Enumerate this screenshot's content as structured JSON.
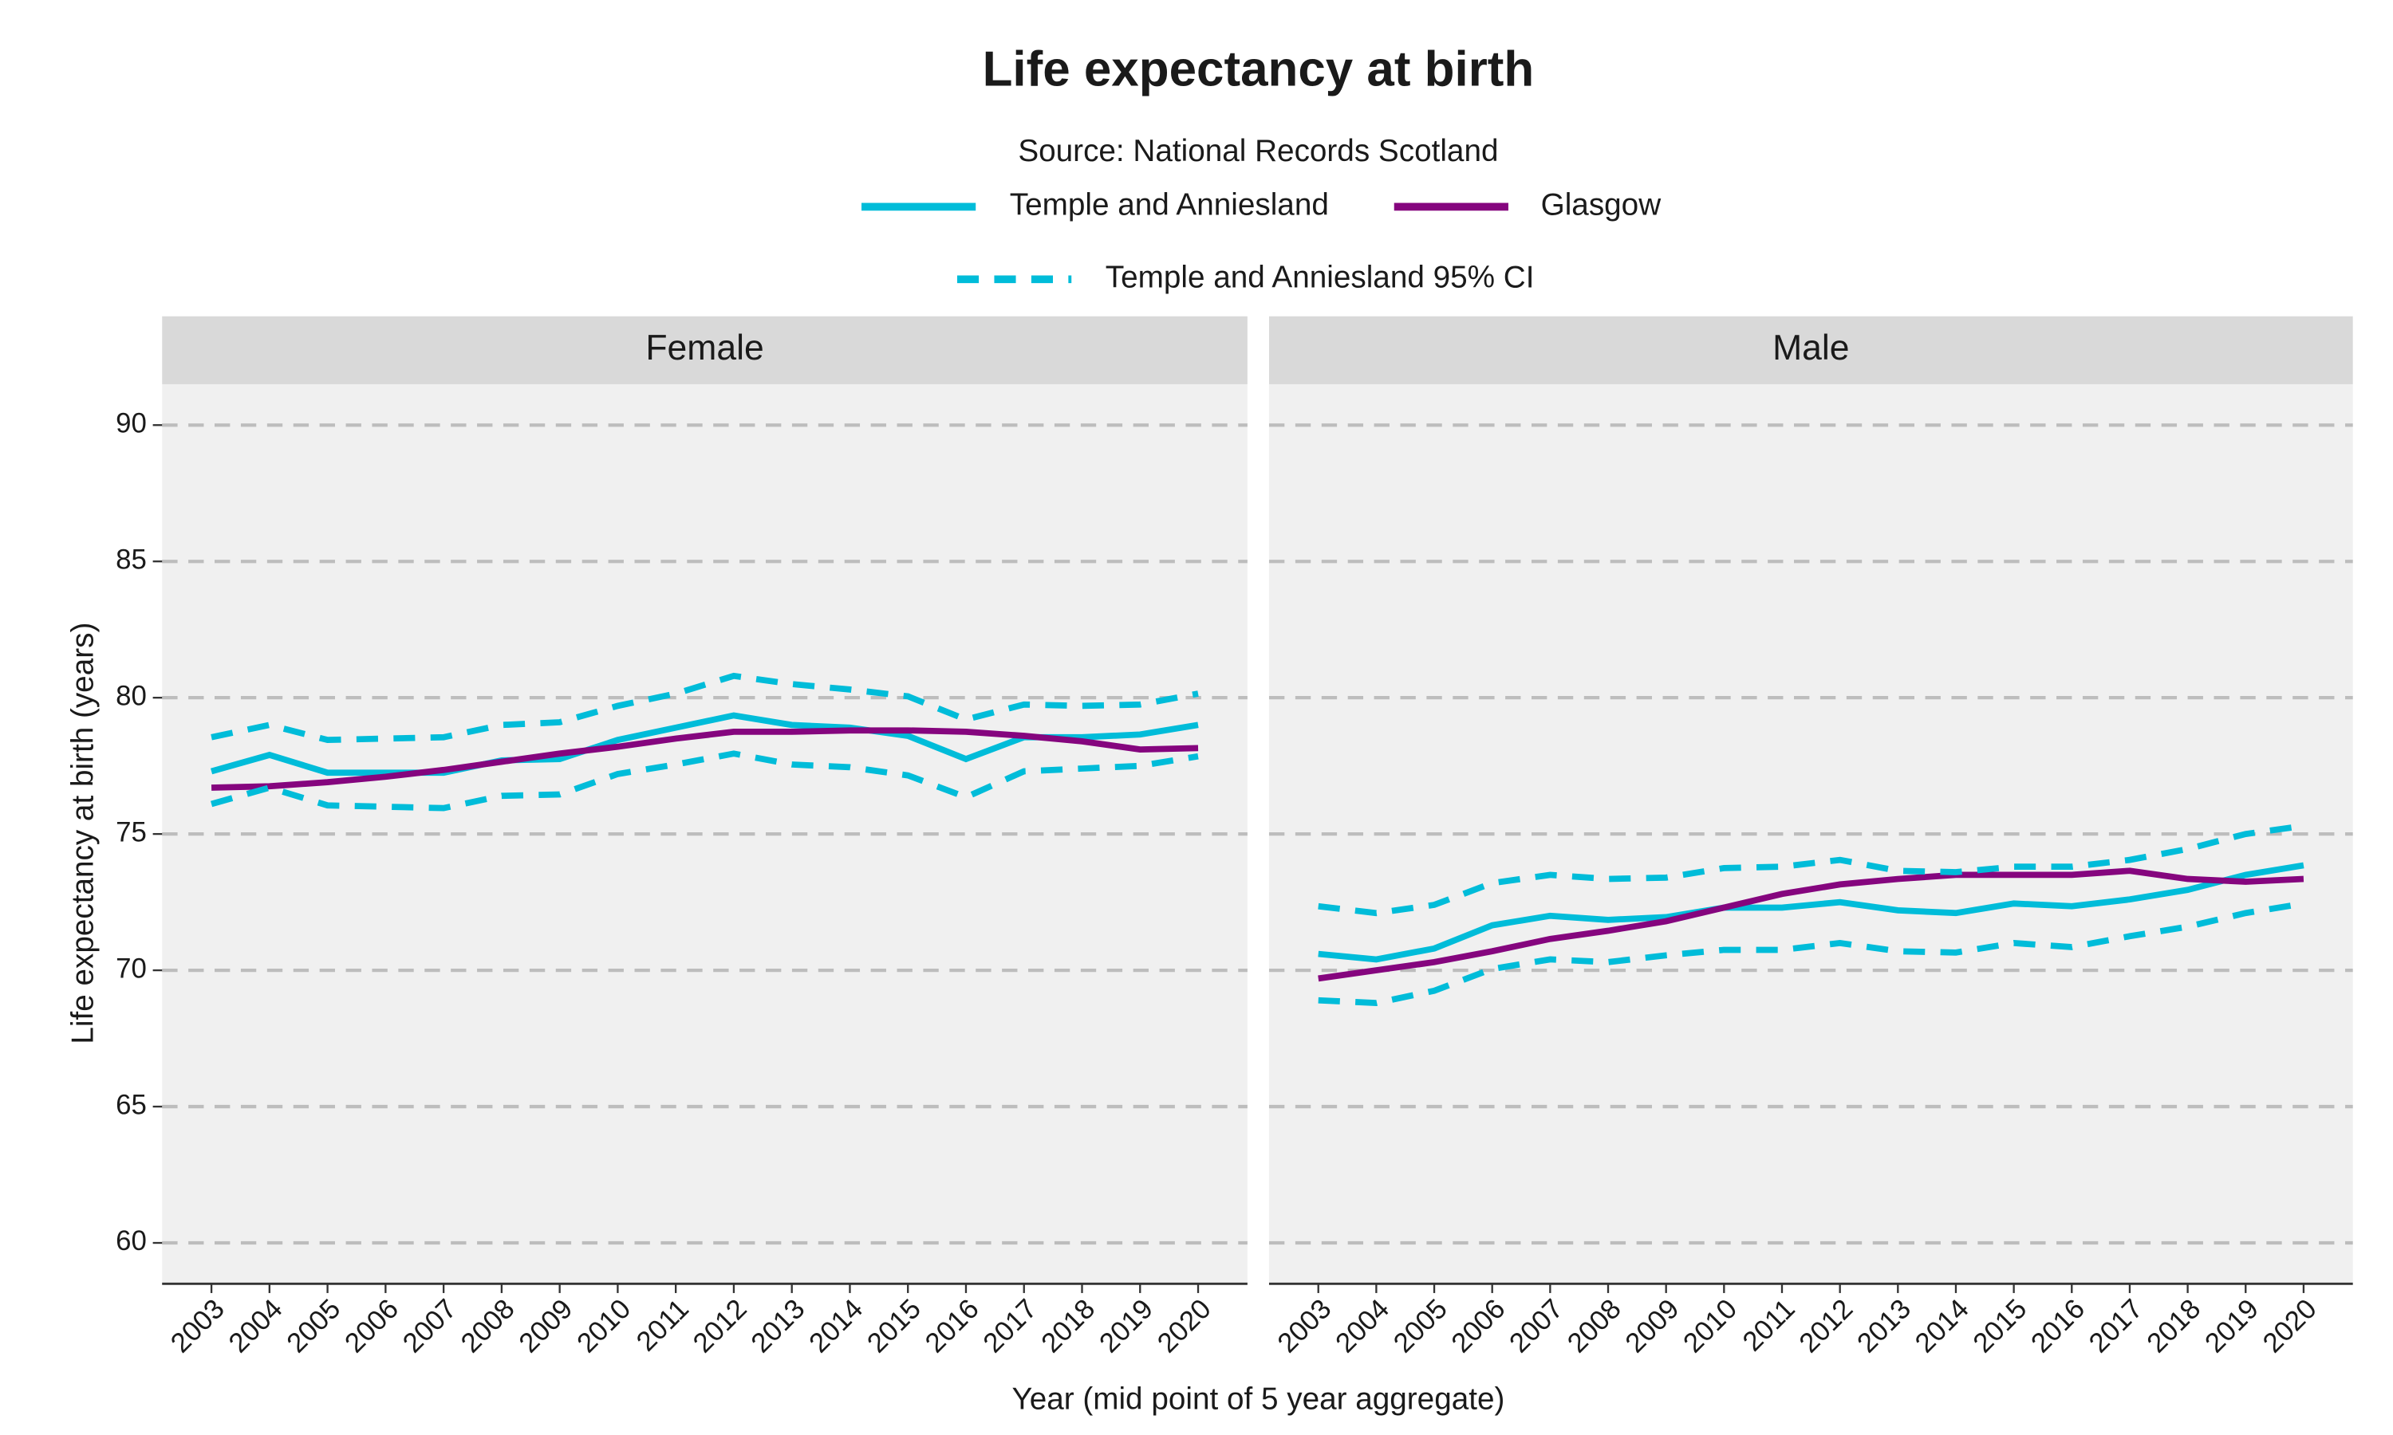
{
  "chart_data": {
    "type": "line",
    "title": "Life expectancy at birth",
    "subtitle": "Source: National Records Scotland",
    "x_label": "Year (mid point of 5 year aggregate)",
    "y_label": "Life expectancy at birth (years)",
    "x": [
      2003,
      2004,
      2005,
      2006,
      2007,
      2008,
      2009,
      2010,
      2011,
      2012,
      2013,
      2014,
      2015,
      2016,
      2017,
      2018,
      2019,
      2020
    ],
    "xlim": [
      2002.15,
      2020.85
    ],
    "ylim": [
      58.5,
      91.5
    ],
    "yticks": [
      60,
      65,
      70,
      75,
      80,
      85,
      90
    ],
    "grid": true,
    "series": [
      {
        "name": "Temple and Anniesland",
        "color": "#00bcd9",
        "dashed": false
      },
      {
        "name": "Glasgow",
        "color": "#85057e",
        "dashed": false
      },
      {
        "name": "Temple and Anniesland 95% CI",
        "color": "#00bcd9",
        "dashed": true
      }
    ],
    "panels": [
      {
        "title": "Female",
        "data": [
          {
            "values": [
              77.3,
              77.9,
              77.25,
              77.25,
              77.25,
              77.7,
              77.75,
              78.45,
              78.9,
              79.35,
              79.0,
              78.9,
              78.6,
              77.75,
              78.55,
              78.55,
              78.65,
              79.0
            ]
          },
          {
            "values": [
              76.7,
              76.75,
              76.9,
              77.1,
              77.35,
              77.65,
              77.95,
              78.2,
              78.5,
              78.75,
              78.75,
              78.8,
              78.8,
              78.75,
              78.6,
              78.4,
              78.1,
              78.15
            ]
          },
          {
            "lower": [
              76.1,
              76.7,
              76.05,
              76.0,
              75.95,
              76.4,
              76.45,
              77.2,
              77.55,
              77.95,
              77.55,
              77.45,
              77.15,
              76.35,
              77.3,
              77.4,
              77.5,
              77.85
            ],
            "upper": [
              78.55,
              79.0,
              78.45,
              78.5,
              78.55,
              79.0,
              79.1,
              79.7,
              80.15,
              80.8,
              80.5,
              80.3,
              80.05,
              79.2,
              79.75,
              79.7,
              79.75,
              80.15
            ]
          }
        ]
      },
      {
        "title": "Male",
        "data": [
          {
            "values": [
              70.6,
              70.4,
              70.8,
              71.65,
              72.0,
              71.85,
              71.95,
              72.3,
              72.3,
              72.5,
              72.2,
              72.1,
              72.45,
              72.35,
              72.6,
              72.95,
              73.5,
              73.85
            ]
          },
          {
            "values": [
              69.7,
              70.0,
              70.3,
              70.7,
              71.15,
              71.45,
              71.8,
              72.3,
              72.8,
              73.15,
              73.35,
              73.5,
              73.5,
              73.5,
              73.65,
              73.35,
              73.25,
              73.35
            ]
          },
          {
            "lower": [
              68.9,
              68.8,
              69.25,
              70.05,
              70.4,
              70.3,
              70.55,
              70.75,
              70.75,
              71.0,
              70.7,
              70.65,
              71.0,
              70.85,
              71.25,
              71.6,
              72.1,
              72.45
            ],
            "upper": [
              72.35,
              72.1,
              72.4,
              73.2,
              73.5,
              73.35,
              73.4,
              73.75,
              73.8,
              74.05,
              73.65,
              73.6,
              73.8,
              73.8,
              74.05,
              74.45,
              75.0,
              75.3
            ]
          }
        ]
      }
    ]
  }
}
